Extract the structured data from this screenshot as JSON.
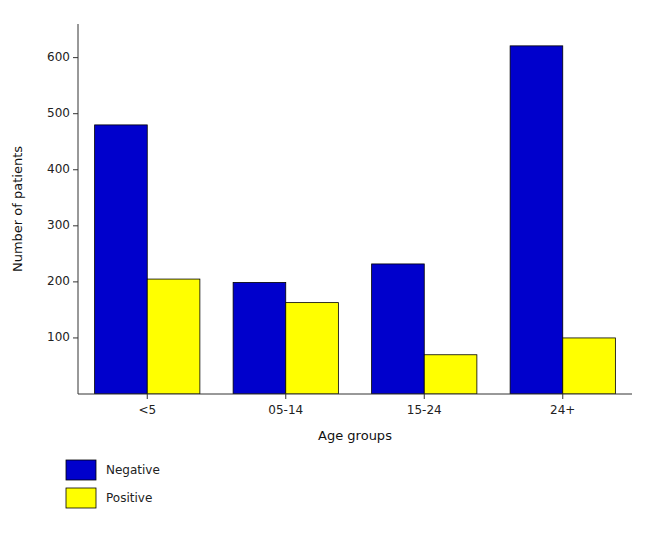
{
  "chart_data": {
    "type": "bar",
    "xlabel": "Age groups",
    "ylabel": "Number of patients",
    "categories": [
      "<5",
      "05-14",
      "15-24",
      "24+"
    ],
    "series": [
      {
        "name": "Negative",
        "color": "#0000CC",
        "values": [
          480,
          199,
          232,
          621
        ]
      },
      {
        "name": "Positive",
        "color": "#FFFF00",
        "values": [
          205,
          163,
          70,
          100
        ]
      }
    ],
    "ylim": [
      0,
      660
    ],
    "yticks": [
      100,
      200,
      300,
      400,
      500,
      600
    ],
    "legend": "lower left",
    "grid": false
  }
}
